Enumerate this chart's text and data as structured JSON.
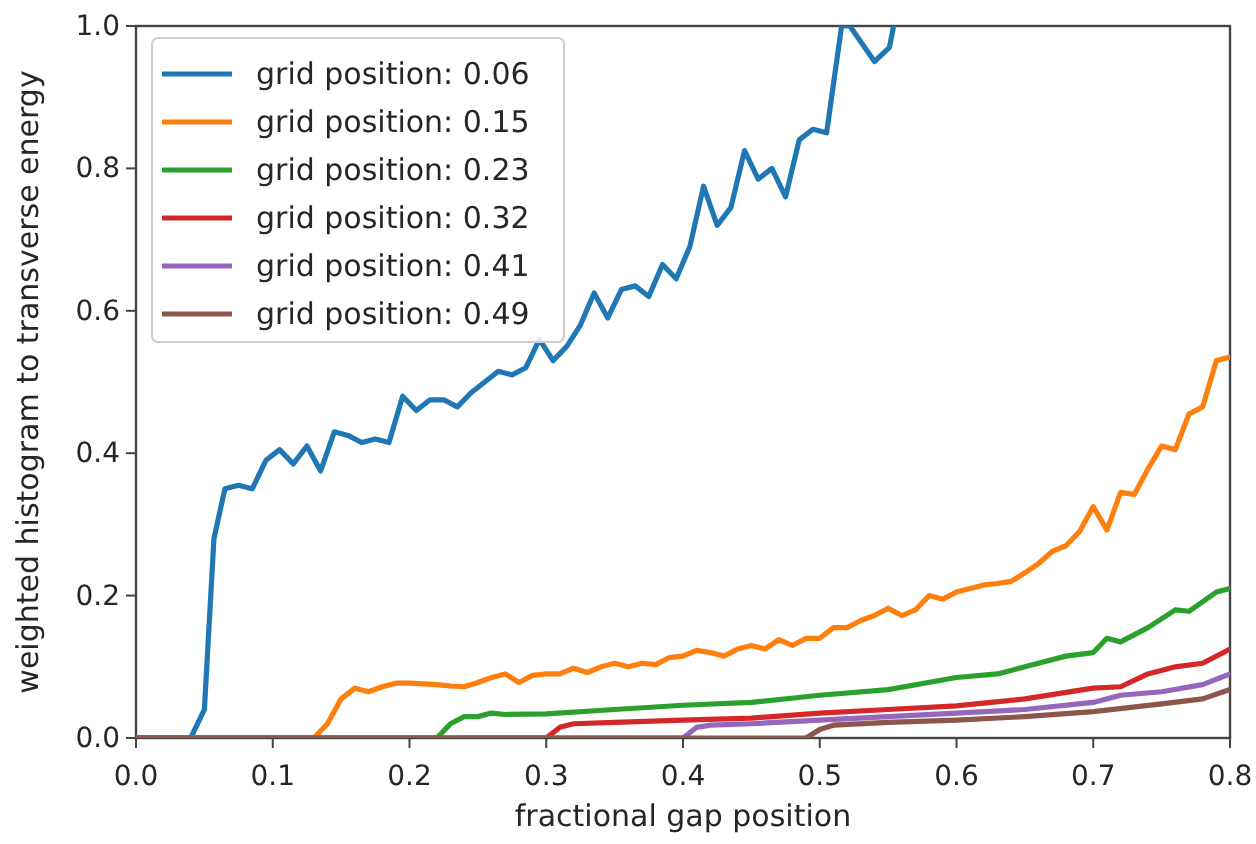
{
  "chart_data": {
    "type": "line",
    "xlabel": "fractional gap position",
    "ylabel": "weighted histogram to transverse energy",
    "xlim": [
      0,
      0.8
    ],
    "ylim": [
      0,
      1
    ],
    "xticks": [
      {
        "value": 0,
        "label": "0.0"
      },
      0.1,
      0.2,
      0.3,
      0.4,
      0.5,
      0.6,
      0.7,
      0.8
    ],
    "yticks": [
      {
        "value": 0,
        "label": "0.0"
      },
      0.2,
      0.4,
      0.6,
      0.8,
      {
        "value": 1,
        "label": "1.0"
      }
    ],
    "grid": false,
    "legend": "top left",
    "marker": "none",
    "line_style": "solid",
    "series": [
      {
        "name": "grid position: 0.06",
        "color": "#1f77b4",
        "x": [
          0,
          0.04,
          0.05,
          0.057,
          0.065,
          0.075,
          0.085,
          0.095,
          0.105,
          0.115,
          0.125,
          0.135,
          0.145,
          0.155,
          0.165,
          0.175,
          0.185,
          0.195,
          0.205,
          0.215,
          0.225,
          0.235,
          0.245,
          0.255,
          0.265,
          0.275,
          0.285,
          0.295,
          0.305,
          0.315,
          0.325,
          0.335,
          0.345,
          0.355,
          0.365,
          0.375,
          0.385,
          0.395,
          0.405,
          0.415,
          0.425,
          0.435,
          0.445,
          0.455,
          0.465,
          0.475,
          0.485,
          0.495,
          0.505,
          0.516,
          0.522,
          0.54,
          0.551,
          0.554
        ],
        "values": [
          0,
          0,
          0.04,
          0.28,
          0.35,
          0.355,
          0.35,
          0.39,
          0.405,
          0.385,
          0.41,
          0.375,
          0.43,
          0.425,
          0.415,
          0.42,
          0.415,
          0.48,
          0.46,
          0.475,
          0.475,
          0.465,
          0.485,
          0.5,
          0.515,
          0.51,
          0.52,
          0.56,
          0.53,
          0.55,
          0.58,
          0.625,
          0.59,
          0.63,
          0.635,
          0.62,
          0.665,
          0.645,
          0.69,
          0.775,
          0.72,
          0.745,
          0.825,
          0.785,
          0.8,
          0.76,
          0.84,
          0.855,
          0.85,
          1.0,
          1.0,
          0.95,
          0.97,
          1.0
        ]
      },
      {
        "name": "grid position: 0.15",
        "color": "#ff7f0e",
        "x": [
          0,
          0.13,
          0.14,
          0.15,
          0.16,
          0.17,
          0.18,
          0.19,
          0.2,
          0.21,
          0.22,
          0.23,
          0.24,
          0.25,
          0.26,
          0.27,
          0.28,
          0.29,
          0.3,
          0.31,
          0.32,
          0.33,
          0.34,
          0.35,
          0.36,
          0.37,
          0.38,
          0.39,
          0.4,
          0.41,
          0.42,
          0.43,
          0.44,
          0.45,
          0.46,
          0.47,
          0.48,
          0.49,
          0.5,
          0.51,
          0.52,
          0.53,
          0.54,
          0.55,
          0.56,
          0.57,
          0.58,
          0.59,
          0.6,
          0.61,
          0.62,
          0.63,
          0.64,
          0.65,
          0.66,
          0.67,
          0.68,
          0.69,
          0.7,
          0.71,
          0.72,
          0.73,
          0.74,
          0.75,
          0.76,
          0.77,
          0.78,
          0.79,
          0.8
        ],
        "values": [
          0,
          0,
          0.02,
          0.055,
          0.07,
          0.065,
          0.072,
          0.077,
          0.077,
          0.076,
          0.075,
          0.073,
          0.072,
          0.078,
          0.085,
          0.09,
          0.078,
          0.088,
          0.09,
          0.09,
          0.098,
          0.092,
          0.1,
          0.105,
          0.1,
          0.105,
          0.103,
          0.113,
          0.115,
          0.123,
          0.12,
          0.115,
          0.125,
          0.13,
          0.125,
          0.138,
          0.13,
          0.14,
          0.14,
          0.155,
          0.155,
          0.165,
          0.172,
          0.182,
          0.172,
          0.18,
          0.2,
          0.195,
          0.205,
          0.21,
          0.215,
          0.217,
          0.22,
          0.232,
          0.245,
          0.262,
          0.27,
          0.29,
          0.325,
          0.292,
          0.345,
          0.342,
          0.378,
          0.41,
          0.405,
          0.455,
          0.465,
          0.53,
          0.535
        ]
      },
      {
        "name": "grid position: 0.23",
        "color": "#2ca02c",
        "x": [
          0,
          0.22,
          0.23,
          0.24,
          0.25,
          0.26,
          0.27,
          0.3,
          0.35,
          0.4,
          0.45,
          0.5,
          0.55,
          0.6,
          0.63,
          0.65,
          0.68,
          0.7,
          0.71,
          0.72,
          0.74,
          0.76,
          0.77,
          0.79,
          0.8
        ],
        "values": [
          0,
          0,
          0.02,
          0.03,
          0.03,
          0.035,
          0.033,
          0.034,
          0.04,
          0.046,
          0.05,
          0.06,
          0.068,
          0.085,
          0.09,
          0.1,
          0.115,
          0.12,
          0.14,
          0.135,
          0.155,
          0.18,
          0.178,
          0.205,
          0.21
        ]
      },
      {
        "name": "grid position: 0.32",
        "color": "#d62728",
        "x": [
          0,
          0.3,
          0.31,
          0.32,
          0.35,
          0.4,
          0.45,
          0.5,
          0.55,
          0.6,
          0.65,
          0.7,
          0.72,
          0.74,
          0.76,
          0.78,
          0.8
        ],
        "values": [
          0,
          0,
          0.015,
          0.02,
          0.022,
          0.025,
          0.028,
          0.035,
          0.04,
          0.045,
          0.055,
          0.07,
          0.072,
          0.09,
          0.1,
          0.105,
          0.125
        ]
      },
      {
        "name": "grid position: 0.41",
        "color": "#9467bd",
        "x": [
          0,
          0.4,
          0.41,
          0.42,
          0.45,
          0.5,
          0.55,
          0.6,
          0.65,
          0.7,
          0.72,
          0.75,
          0.78,
          0.8
        ],
        "values": [
          0,
          0,
          0.015,
          0.018,
          0.02,
          0.025,
          0.03,
          0.035,
          0.04,
          0.05,
          0.06,
          0.065,
          0.075,
          0.09
        ]
      },
      {
        "name": "grid position: 0.49",
        "color": "#8c564b",
        "x": [
          0,
          0.49,
          0.5,
          0.51,
          0.55,
          0.6,
          0.65,
          0.7,
          0.75,
          0.78,
          0.8
        ],
        "values": [
          0,
          0,
          0.012,
          0.018,
          0.022,
          0.025,
          0.03,
          0.037,
          0.048,
          0.055,
          0.068
        ]
      }
    ]
  }
}
